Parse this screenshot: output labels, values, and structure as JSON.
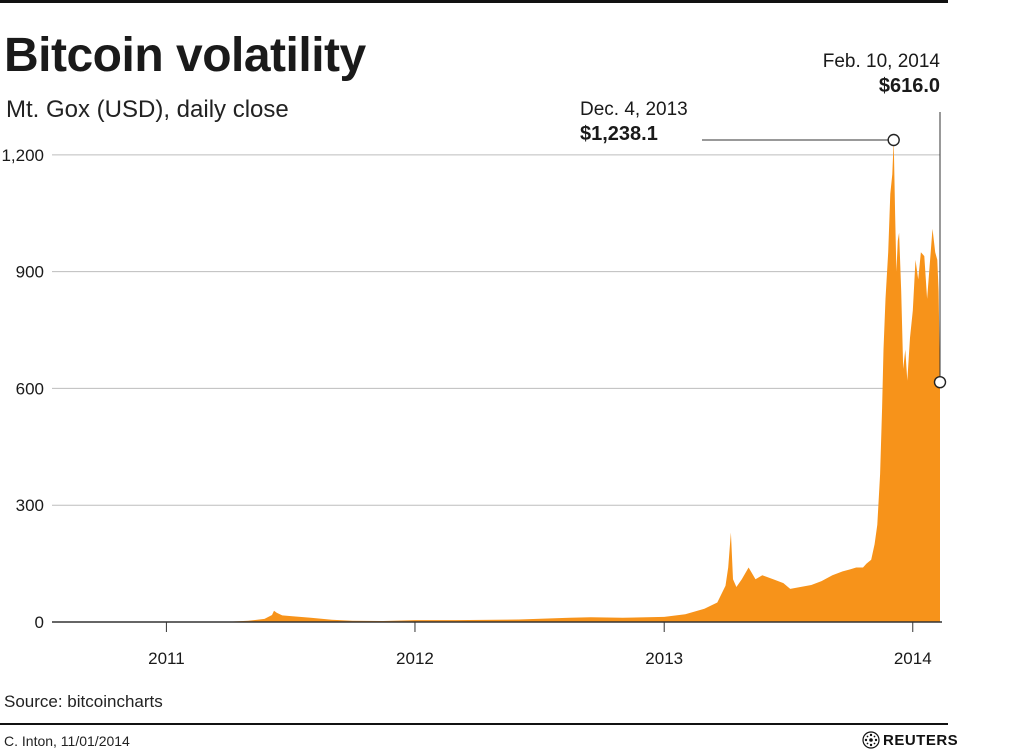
{
  "title": "Bitcoin volatility",
  "subtitle": "Mt. Gox (USD), daily close",
  "annotations": {
    "peak": {
      "date": "Dec. 4, 2013",
      "value": "$1,238.1"
    },
    "latest": {
      "date": "Feb. 10, 2014",
      "value": "$616.0"
    }
  },
  "source": "Source: bitcoincharts",
  "credit": "C. Inton, 11/01/2014",
  "brand": "REUTERS",
  "colors": {
    "area": "#f7931a",
    "grid": "#bdbdbd",
    "axis": "#333333",
    "text": "#1a1a1a"
  },
  "chart_data": {
    "type": "area",
    "title": "Bitcoin volatility",
    "subtitle": "Mt. Gox (USD), daily close",
    "x_range": [
      "2010-07-17",
      "2014-02-10"
    ],
    "ylim": [
      0,
      1238.1
    ],
    "y_ticks": [
      0,
      300,
      600,
      900,
      1200
    ],
    "y_tick_labels": [
      "0",
      "300",
      "600",
      "900",
      "1,200"
    ],
    "x_ticks": [
      "2011-01-01",
      "2012-01-01",
      "2013-01-01",
      "2014-01-01"
    ],
    "x_tick_labels": [
      "2011",
      "2012",
      "2013",
      "2014"
    ],
    "grid": true,
    "series": [
      {
        "x": [
          "2010-07-17",
          "2010-10-01",
          "2011-01-01",
          "2011-02-15",
          "2011-04-01",
          "2011-05-01",
          "2011-05-25",
          "2011-06-05",
          "2011-06-08",
          "2011-06-12",
          "2011-06-20",
          "2011-07-05",
          "2011-08-01",
          "2011-09-01",
          "2011-10-01",
          "2011-11-15",
          "2012-01-01",
          "2012-03-01",
          "2012-06-01",
          "2012-08-15",
          "2012-09-15",
          "2012-11-01",
          "2013-01-01",
          "2013-02-01",
          "2013-03-01",
          "2013-03-20",
          "2013-04-01",
          "2013-04-05",
          "2013-04-09",
          "2013-04-12",
          "2013-04-17",
          "2013-04-25",
          "2013-05-05",
          "2013-05-15",
          "2013-05-25",
          "2013-06-10",
          "2013-06-25",
          "2013-07-05",
          "2013-07-20",
          "2013-08-05",
          "2013-08-20",
          "2013-09-05",
          "2013-09-20",
          "2013-10-01",
          "2013-10-10",
          "2013-10-20",
          "2013-10-25",
          "2013-11-01",
          "2013-11-06",
          "2013-11-10",
          "2013-11-14",
          "2013-11-17",
          "2013-11-19",
          "2013-11-22",
          "2013-11-26",
          "2013-11-29",
          "2013-12-02",
          "2013-12-04",
          "2013-12-06",
          "2013-12-08",
          "2013-12-10",
          "2013-12-12",
          "2013-12-15",
          "2013-12-18",
          "2013-12-21",
          "2013-12-24",
          "2013-12-28",
          "2014-01-01",
          "2014-01-05",
          "2014-01-09",
          "2014-01-13",
          "2014-01-18",
          "2014-01-22",
          "2014-01-26",
          "2014-01-30",
          "2014-02-03",
          "2014-02-06",
          "2014-02-08",
          "2014-02-10"
        ],
        "y": [
          0.05,
          0.1,
          0.3,
          0.9,
          0.8,
          3,
          8,
          18,
          29,
          24,
          17,
          15,
          11,
          6,
          3,
          2.5,
          5,
          5,
          6.5,
          11,
          12,
          11,
          13,
          20,
          34,
          50,
          93,
          140,
          230,
          110,
          90,
          110,
          140,
          110,
          120,
          110,
          100,
          85,
          90,
          95,
          105,
          120,
          130,
          135,
          140,
          140,
          150,
          160,
          200,
          250,
          380,
          550,
          700,
          830,
          950,
          1100,
          1150,
          1238.1,
          1050,
          900,
          980,
          1000,
          850,
          650,
          700,
          620,
          730,
          800,
          930,
          880,
          950,
          940,
          830,
          920,
          1010,
          950,
          930,
          850,
          616
        ]
      }
    ]
  }
}
